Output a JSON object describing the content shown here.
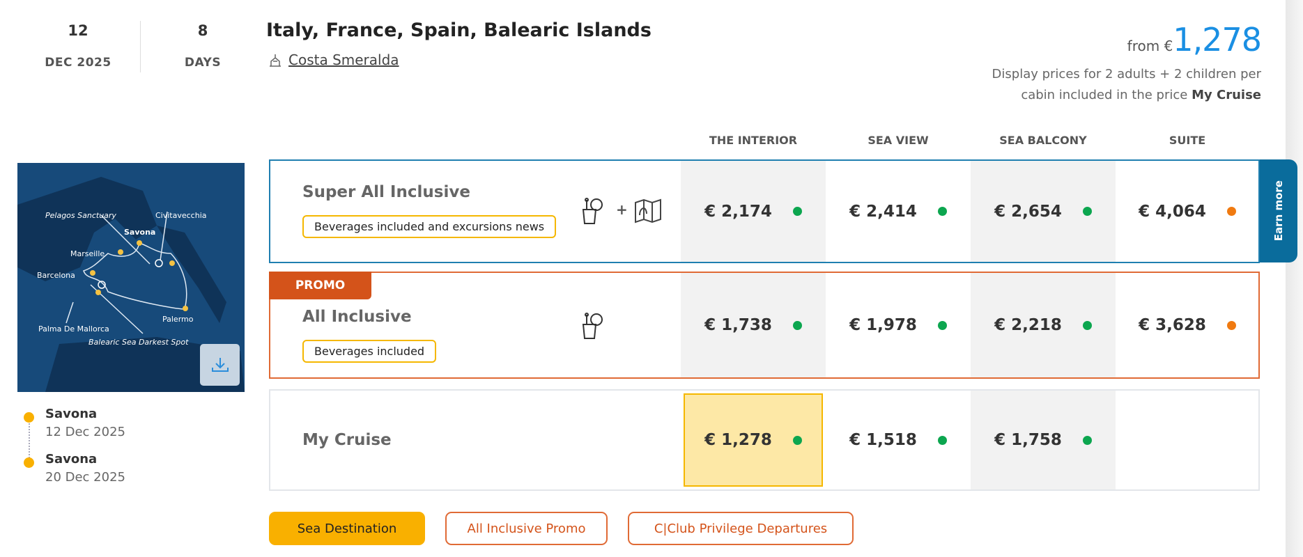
{
  "departure": {
    "day": "12",
    "month_year": "DEC 2025"
  },
  "duration": {
    "value": "8",
    "unit": "DAYS"
  },
  "title": "Italy, France, Spain, Balearic Islands",
  "ship": {
    "icon": "ship-icon",
    "name": "Costa Smeralda"
  },
  "price_summary": {
    "prefix": "from €",
    "amount": "1,278",
    "note": "Display prices for 2 adults + 2 children per cabin included in the price",
    "note_bold": "My Cruise"
  },
  "columns": [
    "THE INTERIOR",
    "SEA VIEW",
    "SEA BALCONY",
    "SUITE"
  ],
  "map": {
    "labels": [
      "Pelagos Sanctuary",
      "Civitavecchia",
      "Savona",
      "Marseille",
      "Barcelona",
      "Palermo",
      "Palma De Mallorca",
      "Balearic Sea Darkest Spot"
    ],
    "download_icon": "download-icon"
  },
  "itinerary": [
    {
      "port": "Savona",
      "date": "12 Dec 2025"
    },
    {
      "port": "Savona",
      "date": "20 Dec 2025"
    }
  ],
  "rows": [
    {
      "name": "Super All Inclusive",
      "tag": "Beverages included and excursions news",
      "plus": "+",
      "prices": [
        {
          "v": "€ 2,174",
          "s": "#0ca64f"
        },
        {
          "v": "€ 2,414",
          "s": "#0ca64f"
        },
        {
          "v": "€ 2,654",
          "s": "#0ca64f"
        },
        {
          "v": "€ 4,064",
          "s": "#f07a10"
        }
      ],
      "side_tab": "Earn more",
      "border": "#1f7fb0"
    },
    {
      "name": "All Inclusive",
      "badge": "PROMO",
      "tag": "Beverages included",
      "prices": [
        {
          "v": "€ 1,738",
          "s": "#0ca64f"
        },
        {
          "v": "€ 1,978",
          "s": "#0ca64f"
        },
        {
          "v": "€ 2,218",
          "s": "#0ca64f"
        },
        {
          "v": "€ 3,628",
          "s": "#f07a10"
        }
      ],
      "border": "#e06a35"
    },
    {
      "name": "My Cruise",
      "prices": [
        {
          "v": "€ 1,278",
          "s": "#0ca64f"
        },
        {
          "v": "€ 1,518",
          "s": "#0ca64f"
        },
        {
          "v": "€ 1,758",
          "s": "#0ca64f"
        }
      ],
      "border": "#e3e6ea"
    }
  ],
  "buttons": [
    "Sea Destination",
    "All Inclusive Promo",
    "C|Club Privilege Departures"
  ],
  "colors": {
    "accent": "#1a8fe3",
    "promo": "#d4531a",
    "yellow": "#f9b000",
    "teal": "#0a6c9c"
  }
}
